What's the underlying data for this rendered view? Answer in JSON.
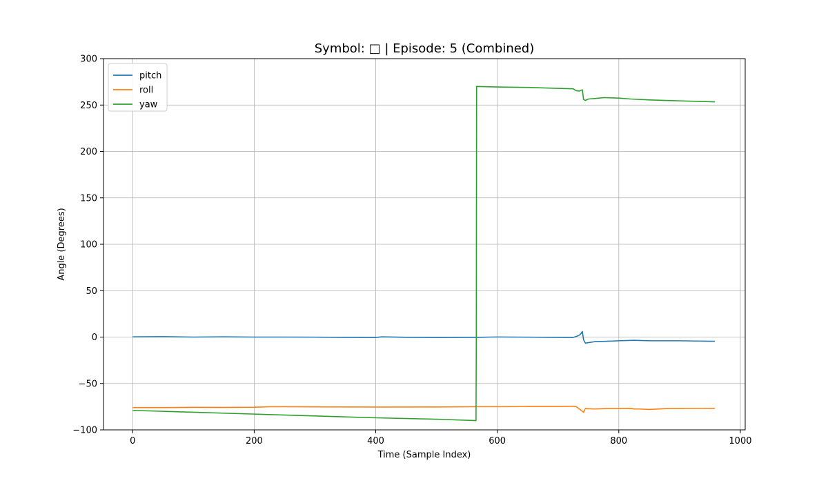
{
  "chart_data": {
    "type": "line",
    "title": "Symbol: □ | Episode: 5 (Combined)",
    "xlabel": "Time (Sample Index)",
    "ylabel": "Angle (Degrees)",
    "xlim": [
      -48,
      1008
    ],
    "ylim": [
      -100,
      300
    ],
    "xticks": [
      0,
      200,
      400,
      600,
      800,
      1000
    ],
    "yticks": [
      -100,
      -50,
      0,
      50,
      100,
      150,
      200,
      250,
      300
    ],
    "grid": true,
    "legend_position": "upper-left",
    "series": [
      {
        "name": "pitch",
        "color": "#1f77b4",
        "x": [
          0,
          50,
          100,
          150,
          200,
          250,
          300,
          350,
          400,
          410,
          450,
          500,
          550,
          565,
          590,
          600,
          650,
          700,
          725,
          730,
          735,
          738,
          740,
          742,
          745,
          750,
          760,
          780,
          800,
          825,
          850,
          900,
          950,
          958
        ],
        "y": [
          0.2,
          0.4,
          0.0,
          0.2,
          0.0,
          0.0,
          -0.1,
          -0.3,
          -0.4,
          0.2,
          -0.2,
          -0.4,
          -0.3,
          -0.3,
          0.0,
          0.1,
          -0.1,
          -0.3,
          -0.4,
          0.6,
          2.0,
          4.0,
          6.0,
          -3.0,
          -6.5,
          -6.0,
          -5.0,
          -4.5,
          -4.0,
          -3.5,
          -4.0,
          -4.0,
          -4.5,
          -4.5
        ]
      },
      {
        "name": "roll",
        "color": "#ff7f0e",
        "x": [
          0,
          50,
          100,
          150,
          200,
          230,
          300,
          400,
          500,
          560,
          620,
          650,
          700,
          725,
          730,
          735,
          740,
          742,
          745,
          760,
          780,
          800,
          820,
          825,
          835,
          850,
          880,
          958
        ],
        "y": [
          -76,
          -76,
          -75.7,
          -75.8,
          -75.6,
          -75,
          -75.2,
          -75.4,
          -75.3,
          -75.1,
          -75,
          -74.8,
          -74.8,
          -74.5,
          -75,
          -77.5,
          -80,
          -81,
          -77,
          -77.5,
          -77,
          -77,
          -76.8,
          -77.5,
          -77.5,
          -78,
          -77,
          -76.8
        ]
      },
      {
        "name": "yaw",
        "color": "#2ca02c",
        "x": [
          0,
          100,
          200,
          300,
          400,
          500,
          565,
          565.5,
          566,
          600,
          650,
          700,
          725,
          730,
          735,
          740,
          742,
          745,
          750,
          760,
          775,
          800,
          820,
          850,
          900,
          958
        ],
        "y": [
          -79,
          -81,
          -83,
          -85,
          -87,
          -88.5,
          -90,
          0,
          270,
          269.5,
          269,
          268,
          267.5,
          265.5,
          265,
          266.5,
          256,
          255,
          256.5,
          257,
          258,
          257.5,
          256.5,
          255.5,
          254.5,
          253.5
        ]
      }
    ]
  }
}
